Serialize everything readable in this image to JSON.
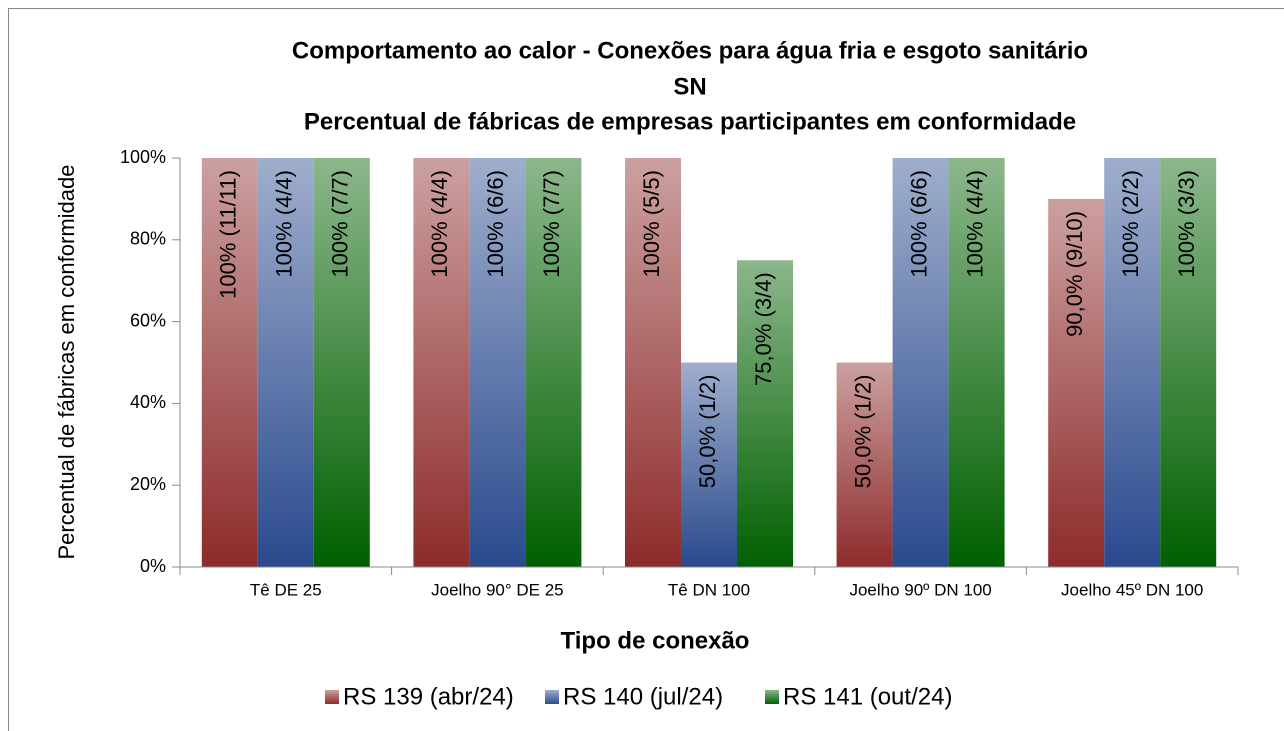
{
  "chart_data": {
    "type": "bar",
    "title": [
      "Comportamento ao calor - Conexões para água fria e esgoto sanitário",
      "SN",
      "Percentual de fábricas de empresas participantes em conformidade"
    ],
    "x_label": "Tipo de conexão",
    "y_label": "Percentual de fábricas em conformidade",
    "categories": [
      "Tê DE 25",
      "Joelho 90° DE 25",
      "Tê DN 100",
      "Joelho 90º DN 100",
      "Joelho 45º DN 100"
    ],
    "series": [
      {
        "name": "RS 139 (abr/24)",
        "color": "#8e2b2b",
        "values": [
          100,
          100,
          100,
          50,
          90
        ],
        "value_labels": [
          "100% (11/11)",
          "100% (4/4)",
          "100% (5/5)",
          "50,0% (1/2)",
          "90,0% (9/10)"
        ]
      },
      {
        "name": "RS 140 (jul/24)",
        "color": "#2a4a8e",
        "values": [
          100,
          100,
          50,
          100,
          100
        ],
        "value_labels": [
          "100% (4/4)",
          "100% (6/6)",
          "50,0% (1/2)",
          "100% (6/6)",
          "100% (2/2)"
        ]
      },
      {
        "name": "RS 141 (out/24)",
        "color": "#006000",
        "values": [
          100,
          100,
          75,
          100,
          100
        ],
        "value_labels": [
          "100% (7/7)",
          "100% (7/7)",
          "75,0% (3/4)",
          "100% (4/4)",
          "100% (3/3)"
        ]
      }
    ],
    "ylim": [
      0,
      100
    ],
    "yticks": [
      {
        "value": 0,
        "label": "0%"
      },
      {
        "value": 20,
        "label": "20%"
      },
      {
        "value": 40,
        "label": "40%"
      },
      {
        "value": 60,
        "label": "60%"
      },
      {
        "value": 80,
        "label": "80%"
      },
      {
        "value": 100,
        "label": "100%"
      }
    ],
    "legend": "bottom"
  }
}
